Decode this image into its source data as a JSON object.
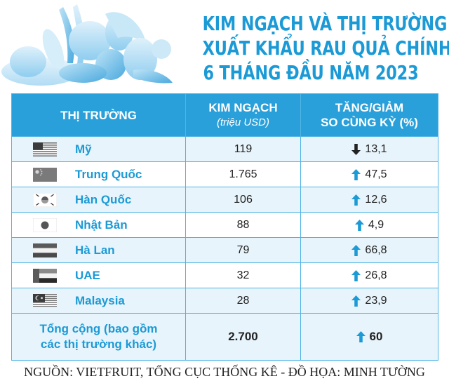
{
  "title_lines": [
    "KIM NGẠCH VÀ THỊ TRƯỜNG",
    "XUẤT KHẨU RAU QUẢ CHÍNH,",
    "6 THÁNG ĐẦU NĂM 2023"
  ],
  "headers": {
    "market": "THỊ TRƯỜNG",
    "value": "KIM NGẠCH",
    "value_unit": "(triệu USD)",
    "change_line1": "TĂNG/GIẢM",
    "change_line2": "SO CÙNG KỲ (%)"
  },
  "rows": [
    {
      "country": "Mỹ",
      "flag": "flag-usa-icon",
      "value": "119",
      "change": "13,1",
      "direction": "down"
    },
    {
      "country": "Trung Quốc",
      "flag": "flag-china-icon",
      "value": "1.765",
      "change": "47,5",
      "direction": "up"
    },
    {
      "country": "Hàn Quốc",
      "flag": "flag-korea-icon",
      "value": "106",
      "change": "12,6",
      "direction": "up"
    },
    {
      "country": "Nhật Bản",
      "flag": "flag-japan-icon",
      "value": "88",
      "change": "4,9",
      "direction": "up"
    },
    {
      "country": "Hà Lan",
      "flag": "flag-netherlands-icon",
      "value": "79",
      "change": "66,8",
      "direction": "up"
    },
    {
      "country": "UAE",
      "flag": "flag-uae-icon",
      "value": "32",
      "change": "26,8",
      "direction": "up"
    },
    {
      "country": "Malaysia",
      "flag": "flag-malaysia-icon",
      "value": "28",
      "change": "23,9",
      "direction": "up"
    }
  ],
  "total": {
    "label_line1": "Tổng cộng (bao gồm",
    "label_line2": "các thị trường khác)",
    "value": "2.700",
    "change": "60",
    "direction": "up"
  },
  "source": "NGUỒN: VIETFRUIT, TỔNG CỤC THỐNG KÊ - ĐỒ HỌA: MINH TƯỜNG",
  "colors": {
    "accent": "#1b9ad6",
    "header_bg": "#2aa0da",
    "row_alt": "#e8f4fb",
    "arrow": "#1b9ad6",
    "arrow_down": "#222222"
  },
  "chart_data": {
    "type": "table",
    "columns": [
      "THỊ TRƯỜNG",
      "KIM NGẠCH (triệu USD)",
      "TĂNG/GIẢM SO CÙNG KỲ (%)"
    ],
    "rows": [
      [
        "Mỹ",
        119,
        -13.1
      ],
      [
        "Trung Quốc",
        1765,
        47.5
      ],
      [
        "Hàn Quốc",
        106,
        12.6
      ],
      [
        "Nhật Bản",
        88,
        4.9
      ],
      [
        "Hà Lan",
        79,
        66.8
      ],
      [
        "UAE",
        32,
        26.8
      ],
      [
        "Malaysia",
        28,
        23.9
      ],
      [
        "Tổng cộng (bao gồm các thị trường khác)",
        2700,
        60
      ]
    ]
  }
}
